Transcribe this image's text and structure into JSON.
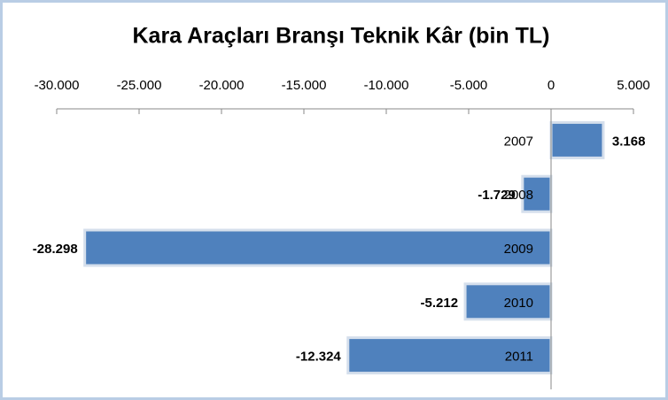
{
  "chart_data": {
    "type": "bar",
    "orientation": "horizontal",
    "title": "Kara Araçları Branşı Teknik Kâr (bin TL)",
    "categories": [
      "2007",
      "2008",
      "2009",
      "2010",
      "2011"
    ],
    "values": [
      3168,
      -1729,
      -28298,
      -5212,
      -12324
    ],
    "value_labels": [
      "3.168",
      "-1.729",
      "-28.298",
      "-5.212",
      "-12.324"
    ],
    "color": "#4f81bd",
    "xlim": [
      -30000,
      5000
    ],
    "xticks": [
      {
        "value": -30000,
        "label": "-30.000"
      },
      {
        "value": -25000,
        "label": "-25.000"
      },
      {
        "value": -20000,
        "label": "-20.000"
      },
      {
        "value": -15000,
        "label": "-15.000"
      },
      {
        "value": -10000,
        "label": "-10.000"
      },
      {
        "value": -5000,
        "label": "-5.000"
      },
      0,
      {
        "value": 5000,
        "label": "5.000"
      }
    ]
  }
}
